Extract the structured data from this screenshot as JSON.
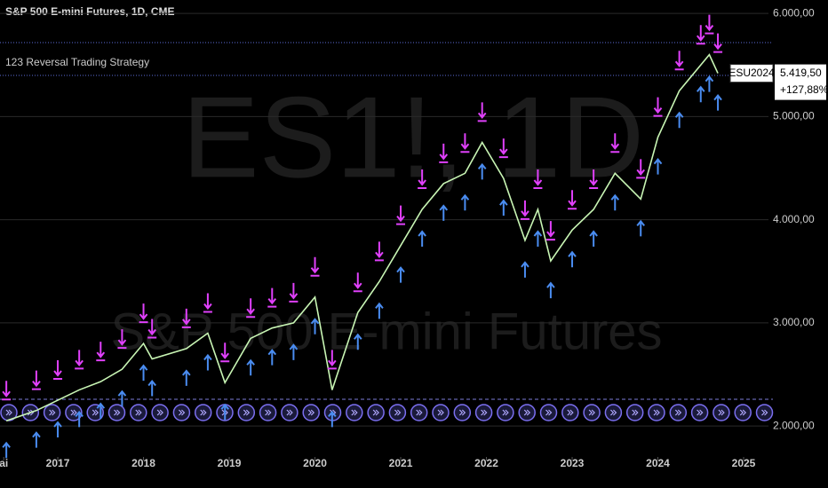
{
  "chart_data": {
    "type": "line",
    "title": "S&P 500 E-mini Futures, 1D, CME",
    "subtitle": "123 Reversal Trading Strategy",
    "watermark": "ES1!, 1D",
    "watermark_subtitle": "S&P 500 E-mini Futures",
    "x": [
      2016.4,
      2016.75,
      2017.0,
      2017.25,
      2017.5,
      2017.75,
      2018.0,
      2018.1,
      2018.5,
      2018.75,
      2018.95,
      2019.25,
      2019.5,
      2019.75,
      2020.0,
      2020.2,
      2020.5,
      2020.75,
      2021.0,
      2021.25,
      2021.5,
      2021.75,
      2021.95,
      2022.2,
      2022.45,
      2022.6,
      2022.75,
      2023.0,
      2023.25,
      2023.5,
      2023.8,
      2024.0,
      2024.25,
      2024.5,
      2024.6,
      2024.7
    ],
    "series": [
      {
        "name": "ES1!",
        "color": "#c8f5b4",
        "values": [
          2050,
          2150,
          2250,
          2350,
          2430,
          2550,
          2800,
          2650,
          2750,
          2900,
          2420,
          2850,
          2950,
          3000,
          3250,
          2350,
          3100,
          3400,
          3750,
          4100,
          4350,
          4450,
          4750,
          4400,
          3800,
          4100,
          3600,
          3900,
          4100,
          4450,
          4200,
          4800,
          5250,
          5500,
          5600,
          5419.5
        ]
      }
    ],
    "xlim": [
      2016.326,
      2025.29
    ],
    "xticks": [
      {
        "value": 2016.37,
        "label": "ai"
      },
      2017,
      2018,
      2019,
      2020,
      2021,
      2022,
      2023,
      2024,
      2025
    ],
    "ylim": [
      1700,
      6130
    ],
    "yticks": [
      {
        "value": 2000,
        "label": "2.000,00"
      },
      {
        "value": 3000,
        "label": "3.000,00"
      },
      {
        "value": 4000,
        "label": "4.000,00"
      },
      {
        "value": 5000,
        "label": "5.000,00"
      },
      {
        "value": 6000,
        "label": "6.000,00"
      }
    ],
    "grid": true,
    "last_price": {
      "symbol": "ESU2024",
      "value": 5419.5,
      "label": "5.419,50",
      "change": "+127,88%"
    }
  }
}
